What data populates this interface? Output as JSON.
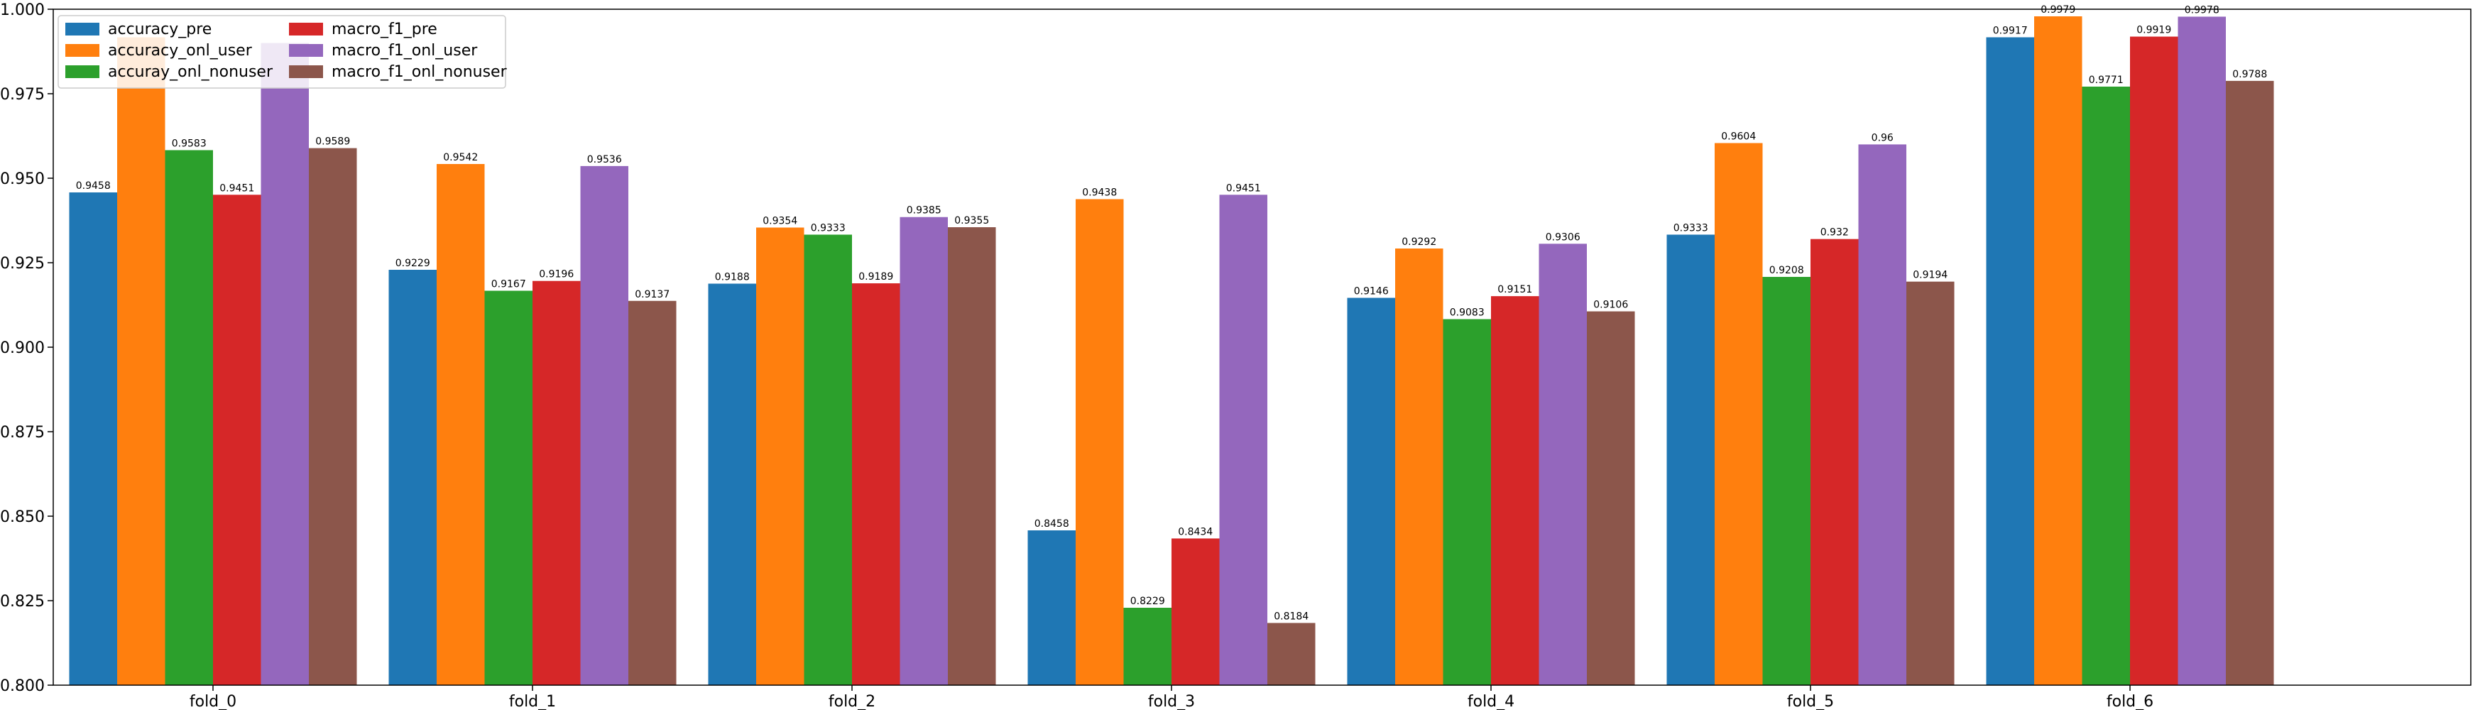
{
  "chart_data": {
    "type": "bar",
    "title": "",
    "xlabel": "",
    "ylabel": "",
    "ylim": [
      0.8,
      1.0
    ],
    "yticks": [
      "0.800",
      "0.825",
      "0.850",
      "0.875",
      "0.900",
      "0.925",
      "0.950",
      "0.975",
      "1.000"
    ],
    "grid": false,
    "legend_position": "top-left",
    "categories": [
      "fold_0",
      "fold_1",
      "fold_2",
      "fold_3",
      "fold_4",
      "fold_5",
      "fold_6"
    ],
    "series": [
      {
        "name": "accuracy_pre",
        "color": "#1f77b4",
        "values": [
          0.9458,
          0.9229,
          0.9188,
          0.8458,
          0.9146,
          0.9333,
          0.9917
        ],
        "labels": [
          "0.9458",
          "0.9229",
          "0.9188",
          "0.8458",
          "0.9146",
          "0.9333",
          "0.9917"
        ]
      },
      {
        "name": "accuracy_onl_user",
        "color": "#ff7f0e",
        "values": [
          0.9917,
          0.9542,
          0.9354,
          0.9438,
          0.9292,
          0.9604,
          0.9979
        ],
        "labels": [
          "",
          "0.9542",
          "0.9354",
          "0.9438",
          "0.9292",
          "0.9604",
          "0.9979"
        ]
      },
      {
        "name": "accuray_onl_nonuser",
        "color": "#2ca02c",
        "values": [
          0.9583,
          0.9167,
          0.9333,
          0.8229,
          0.9083,
          0.9208,
          0.9771
        ],
        "labels": [
          "0.9583",
          "0.9167",
          "0.9333",
          "0.8229",
          "0.9083",
          "0.9208",
          "0.9771"
        ]
      },
      {
        "name": "macro_f1_pre",
        "color": "#d62728",
        "values": [
          0.9451,
          0.9196,
          0.9189,
          0.8434,
          0.9151,
          0.932,
          0.9919
        ],
        "labels": [
          "0.9451",
          "0.9196",
          "0.9189",
          "0.8434",
          "0.9151",
          "0.932",
          "0.9919"
        ]
      },
      {
        "name": "macro_f1_onl_user",
        "color": "#9467bd",
        "values": [
          0.99,
          0.9536,
          0.9385,
          0.9451,
          0.9306,
          0.96,
          0.9978
        ],
        "labels": [
          "",
          "0.9536",
          "0.9385",
          "0.9451",
          "0.9306",
          "0.96",
          "0.9978"
        ]
      },
      {
        "name": "macro_f1_onl_nonuser",
        "color": "#8c564b",
        "values": [
          0.9589,
          0.9137,
          0.9355,
          0.8184,
          0.9106,
          0.9194,
          0.9788
        ],
        "labels": [
          "0.9589",
          "0.9137",
          "0.9355",
          "0.8184",
          "0.9106",
          "0.9194",
          "0.9788"
        ]
      }
    ]
  }
}
